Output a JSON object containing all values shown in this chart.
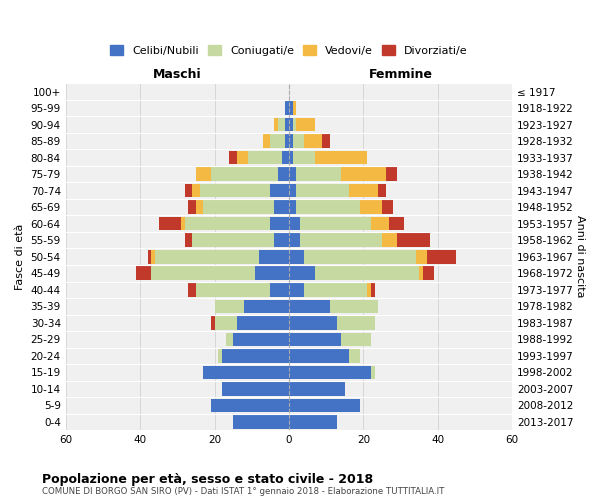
{
  "age_groups": [
    "0-4",
    "5-9",
    "10-14",
    "15-19",
    "20-24",
    "25-29",
    "30-34",
    "35-39",
    "40-44",
    "45-49",
    "50-54",
    "55-59",
    "60-64",
    "65-69",
    "70-74",
    "75-79",
    "80-84",
    "85-89",
    "90-94",
    "95-99",
    "100+"
  ],
  "birth_years": [
    "2013-2017",
    "2008-2012",
    "2003-2007",
    "1998-2002",
    "1993-1997",
    "1988-1992",
    "1983-1987",
    "1978-1982",
    "1973-1977",
    "1968-1972",
    "1963-1967",
    "1958-1962",
    "1953-1957",
    "1948-1952",
    "1943-1947",
    "1938-1942",
    "1933-1937",
    "1928-1932",
    "1923-1927",
    "1918-1922",
    "≤ 1917"
  ],
  "colors": {
    "celibe": "#4472C4",
    "coniugato": "#c5d9a0",
    "vedovo": "#f4b942",
    "divorziato": "#c0392b"
  },
  "maschi": {
    "celibe": [
      15,
      21,
      18,
      23,
      18,
      15,
      14,
      12,
      5,
      9,
      8,
      4,
      5,
      4,
      5,
      3,
      2,
      1,
      1,
      1,
      0
    ],
    "coniugato": [
      0,
      0,
      0,
      0,
      1,
      2,
      6,
      8,
      20,
      28,
      28,
      22,
      23,
      19,
      19,
      18,
      9,
      4,
      2,
      0,
      0
    ],
    "vedovo": [
      0,
      0,
      0,
      0,
      0,
      0,
      0,
      0,
      0,
      0,
      1,
      0,
      1,
      2,
      2,
      4,
      3,
      2,
      1,
      0,
      0
    ],
    "divorziato": [
      0,
      0,
      0,
      0,
      0,
      0,
      1,
      0,
      2,
      4,
      1,
      2,
      6,
      2,
      2,
      0,
      2,
      0,
      0,
      0,
      0
    ]
  },
  "femmine": {
    "celibe": [
      13,
      19,
      15,
      22,
      16,
      14,
      13,
      11,
      4,
      7,
      4,
      3,
      3,
      2,
      2,
      2,
      1,
      1,
      1,
      1,
      0
    ],
    "coniugato": [
      0,
      0,
      0,
      1,
      3,
      8,
      10,
      13,
      17,
      28,
      30,
      22,
      19,
      17,
      14,
      12,
      6,
      3,
      1,
      0,
      0
    ],
    "vedovo": [
      0,
      0,
      0,
      0,
      0,
      0,
      0,
      0,
      1,
      1,
      3,
      4,
      5,
      6,
      8,
      12,
      14,
      5,
      5,
      1,
      0
    ],
    "divorziato": [
      0,
      0,
      0,
      0,
      0,
      0,
      0,
      0,
      1,
      3,
      8,
      9,
      4,
      3,
      2,
      3,
      0,
      2,
      0,
      0,
      0
    ]
  },
  "xlim": 60,
  "title_main": "Popolazione per età, sesso e stato civile - 2018",
  "title_sub": "COMUNE DI BORGO SAN SIRO (PV) - Dati ISTAT 1° gennaio 2018 - Elaborazione TUTTITALIA.IT",
  "label_maschi": "Maschi",
  "label_femmine": "Femmine",
  "ylabel": "Fasce di età",
  "ylabel_right": "Anni di nascita",
  "legend_labels": [
    "Celibi/Nubili",
    "Coniugati/e",
    "Vedovi/e",
    "Divorziati/e"
  ],
  "background_color": "#ffffff",
  "grid_color": "#cccccc"
}
